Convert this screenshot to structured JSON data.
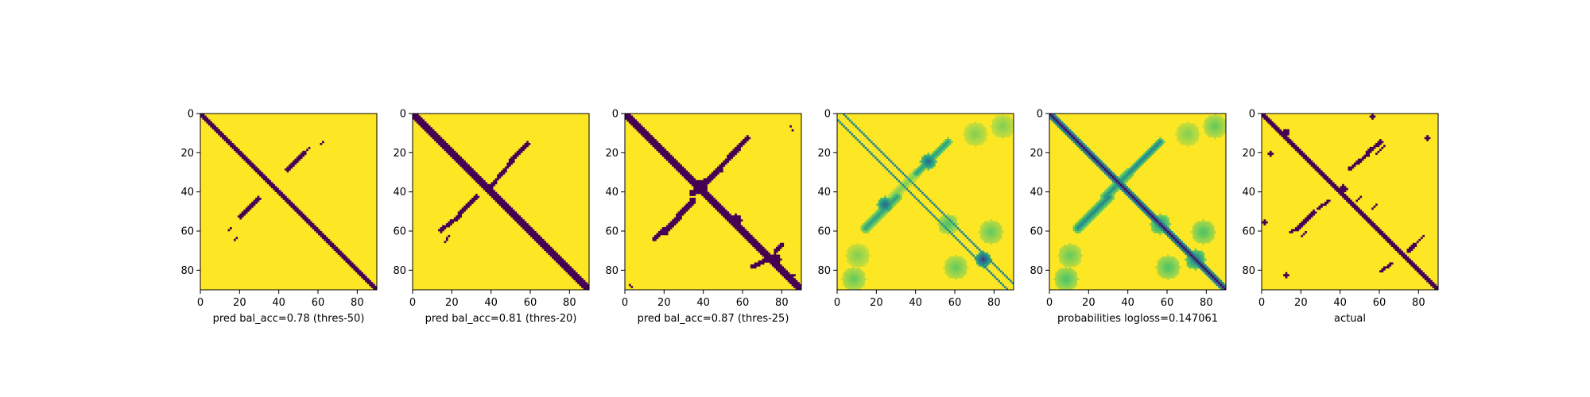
{
  "colors": {
    "background": "#fde725",
    "low": "#440154",
    "mid_dark": "#31688e",
    "mid": "#21918c",
    "mid_light": "#5ec962",
    "light": "#b5de2b",
    "frame": "#000000"
  },
  "chart_data": [
    {
      "type": "heatmap",
      "colormap": "viridis",
      "binary": true,
      "xlabel": "pred bal_acc=0.78 (thres-50)",
      "xlim": [
        0,
        90
      ],
      "ylim": [
        90,
        0
      ],
      "xticks": [
        "0",
        "20",
        "40",
        "60",
        "80"
      ],
      "yticks": [
        "0",
        "20",
        "40",
        "60",
        "80"
      ],
      "features": [
        {
          "kind": "diagonal",
          "width": 2.8,
          "value": 0
        },
        {
          "kind": "segment",
          "from": [
            44,
            28
          ],
          "to": [
            52,
            20
          ],
          "width": 2.0,
          "value": 0
        },
        {
          "kind": "segment",
          "from": [
            53,
            19
          ],
          "to": [
            55,
            17
          ],
          "width": 1.0,
          "value": 0
        },
        {
          "kind": "segment",
          "from": [
            61,
            15
          ],
          "to": [
            62,
            14
          ],
          "width": 0.8,
          "value": 0
        },
        {
          "kind": "segment",
          "from": [
            20,
            52
          ],
          "to": [
            29,
            43
          ],
          "width": 2.0,
          "value": 0
        },
        {
          "kind": "segment",
          "from": [
            14,
            59
          ],
          "to": [
            15,
            58
          ],
          "width": 0.8,
          "value": 0
        },
        {
          "kind": "segment",
          "from": [
            17,
            64
          ],
          "to": [
            18,
            63
          ],
          "width": 0.8,
          "value": 0
        }
      ]
    },
    {
      "type": "heatmap",
      "colormap": "viridis",
      "binary": true,
      "xlabel": "pred bal_acc=0.81 (thres-20)",
      "xlim": [
        0,
        90
      ],
      "ylim": [
        90,
        0
      ],
      "xticks": [
        "0",
        "20",
        "40",
        "60",
        "80"
      ],
      "yticks": [
        "0",
        "20",
        "40",
        "60",
        "80"
      ],
      "features": [
        {
          "kind": "diagonal",
          "width": 3.0,
          "value": 0
        },
        {
          "kind": "segment",
          "from": [
            40,
            36
          ],
          "to": [
            50,
            24
          ],
          "width": 2.0,
          "value": 0
        },
        {
          "kind": "segment",
          "from": [
            50,
            23
          ],
          "to": [
            58,
            15
          ],
          "width": 2.0,
          "value": 0
        },
        {
          "kind": "segment",
          "from": [
            24,
            50
          ],
          "to": [
            32,
            42
          ],
          "width": 2.2,
          "value": 0
        },
        {
          "kind": "segment",
          "from": [
            14,
            59
          ],
          "to": [
            23,
            52
          ],
          "width": 2.0,
          "value": 0
        },
        {
          "kind": "segment",
          "from": [
            16,
            65
          ],
          "to": [
            18,
            62
          ],
          "width": 0.9,
          "value": 0
        }
      ]
    },
    {
      "type": "heatmap",
      "colormap": "viridis",
      "binary": true,
      "xlabel": "pred bal_acc=0.87 (thres-25)",
      "xlim": [
        0,
        90
      ],
      "ylim": [
        90,
        0
      ],
      "xticks": [
        "0",
        "20",
        "40",
        "60",
        "80"
      ],
      "yticks": [
        "0",
        "20",
        "40",
        "60",
        "80"
      ],
      "features": [
        {
          "kind": "diagonal",
          "width": 3.6,
          "value": 0
        },
        {
          "kind": "segment",
          "from": [
            34,
            40
          ],
          "to": [
            48,
            28
          ],
          "width": 3.0,
          "value": 0
        },
        {
          "kind": "segment",
          "from": [
            48,
            27
          ],
          "to": [
            62,
            12
          ],
          "width": 2.4,
          "value": 0
        },
        {
          "kind": "segment",
          "from": [
            20,
            60
          ],
          "to": [
            34,
            44
          ],
          "width": 3.0,
          "value": 0
        },
        {
          "kind": "segment",
          "from": [
            14,
            64
          ],
          "to": [
            20,
            58
          ],
          "width": 1.5,
          "value": 0
        },
        {
          "kind": "blob",
          "center": [
            38,
            37
          ],
          "r": 3.5,
          "value": 0
        },
        {
          "kind": "blob",
          "center": [
            56,
            54
          ],
          "r": 3.0,
          "value": 0
        },
        {
          "kind": "blob",
          "center": [
            76,
            74
          ],
          "r": 3.0,
          "value": 0
        },
        {
          "kind": "segment",
          "from": [
            64,
            78
          ],
          "to": [
            72,
            74
          ],
          "width": 1.8,
          "value": 0
        },
        {
          "kind": "segment",
          "from": [
            76,
            70
          ],
          "to": [
            80,
            66
          ],
          "width": 1.5,
          "value": 0
        },
        {
          "kind": "segment",
          "from": [
            82,
            84
          ],
          "to": [
            86,
            82
          ],
          "width": 1.2,
          "value": 0
        },
        {
          "kind": "segment",
          "from": [
            84,
            6
          ],
          "to": [
            85,
            8
          ],
          "width": 0.8,
          "value": 0
        },
        {
          "kind": "segment",
          "from": [
            2,
            87
          ],
          "to": [
            3,
            88
          ],
          "width": 0.8,
          "value": 0
        }
      ]
    },
    {
      "type": "heatmap",
      "colormap": "viridis",
      "binary": false,
      "xlabel": "",
      "xlim": [
        0,
        90
      ],
      "ylim": [
        90,
        0
      ],
      "xticks": [
        "0",
        "20",
        "40",
        "60",
        "80"
      ],
      "yticks": [
        "0",
        "20",
        "40",
        "60",
        "80"
      ],
      "features": [
        {
          "kind": "offdiag",
          "offset": 3,
          "width": 0.8,
          "value": 0.45
        },
        {
          "kind": "offdiag",
          "offset": -3,
          "width": 0.8,
          "value": 0.45
        },
        {
          "kind": "segment",
          "from": [
            28,
            42
          ],
          "to": [
            40,
            30
          ],
          "width": 4.5,
          "value": 0.8
        },
        {
          "kind": "segment",
          "from": [
            40,
            30
          ],
          "to": [
            56,
            14
          ],
          "width": 4.0,
          "value": 0.55
        },
        {
          "kind": "segment",
          "from": [
            14,
            58
          ],
          "to": [
            30,
            42
          ],
          "width": 4.5,
          "value": 0.55
        },
        {
          "kind": "blob",
          "center": [
            24,
            46
          ],
          "r": 4.0,
          "value": 0.3
        },
        {
          "kind": "blob",
          "center": [
            46,
            24
          ],
          "r": 4.0,
          "value": 0.3
        },
        {
          "kind": "blob",
          "center": [
            74,
            74
          ],
          "r": 4.0,
          "value": 0.15
        },
        {
          "kind": "blob",
          "center": [
            56,
            56
          ],
          "r": 5.0,
          "value": 0.7
        },
        {
          "kind": "blob",
          "center": [
            70,
            10
          ],
          "r": 6.0,
          "value": 0.8
        },
        {
          "kind": "blob",
          "center": [
            84,
            6
          ],
          "r": 6.0,
          "value": 0.8
        },
        {
          "kind": "blob",
          "center": [
            10,
            72
          ],
          "r": 6.0,
          "value": 0.8
        },
        {
          "kind": "blob",
          "center": [
            8,
            84
          ],
          "r": 6.0,
          "value": 0.75
        },
        {
          "kind": "blob",
          "center": [
            60,
            78
          ],
          "r": 6.0,
          "value": 0.75
        },
        {
          "kind": "blob",
          "center": [
            78,
            60
          ],
          "r": 6.0,
          "value": 0.75
        }
      ]
    },
    {
      "type": "heatmap",
      "colormap": "viridis",
      "binary": false,
      "xlabel": "probabilities logloss=0.147061",
      "xlim": [
        0,
        90
      ],
      "ylim": [
        90,
        0
      ],
      "xticks": [
        "0",
        "20",
        "40",
        "60",
        "80"
      ],
      "yticks": [
        "0",
        "20",
        "40",
        "60",
        "80"
      ],
      "features": [
        {
          "kind": "diagonal",
          "width": 4.0,
          "value": 0.12
        },
        {
          "kind": "diagonal",
          "width": 2.0,
          "value": 0.0
        },
        {
          "kind": "segment",
          "from": [
            28,
            42
          ],
          "to": [
            40,
            30
          ],
          "width": 4.5,
          "value": 0.5
        },
        {
          "kind": "segment",
          "from": [
            40,
            30
          ],
          "to": [
            56,
            14
          ],
          "width": 4.0,
          "value": 0.45
        },
        {
          "kind": "segment",
          "from": [
            14,
            58
          ],
          "to": [
            30,
            42
          ],
          "width": 4.5,
          "value": 0.45
        },
        {
          "kind": "blob",
          "center": [
            56,
            56
          ],
          "r": 5.0,
          "value": 0.5
        },
        {
          "kind": "blob",
          "center": [
            74,
            74
          ],
          "r": 5.0,
          "value": 0.4
        },
        {
          "kind": "blob",
          "center": [
            70,
            10
          ],
          "r": 6.0,
          "value": 0.8
        },
        {
          "kind": "blob",
          "center": [
            84,
            6
          ],
          "r": 6.0,
          "value": 0.75
        },
        {
          "kind": "blob",
          "center": [
            10,
            72
          ],
          "r": 6.0,
          "value": 0.75
        },
        {
          "kind": "blob",
          "center": [
            8,
            84
          ],
          "r": 6.0,
          "value": 0.7
        },
        {
          "kind": "blob",
          "center": [
            60,
            78
          ],
          "r": 6.0,
          "value": 0.7
        },
        {
          "kind": "blob",
          "center": [
            78,
            60
          ],
          "r": 6.0,
          "value": 0.7
        }
      ]
    },
    {
      "type": "heatmap",
      "colormap": "viridis",
      "binary": true,
      "xlabel": "actual",
      "xlim": [
        0,
        90
      ],
      "ylim": [
        90,
        0
      ],
      "xticks": [
        "0",
        "20",
        "40",
        "60",
        "80"
      ],
      "yticks": [
        "0",
        "20",
        "40",
        "60",
        "80"
      ],
      "features": [
        {
          "kind": "diagonal",
          "width": 2.6,
          "value": 0
        },
        {
          "kind": "segment",
          "from": [
            44,
            28
          ],
          "to": [
            54,
            20
          ],
          "width": 1.6,
          "value": 0
        },
        {
          "kind": "segment",
          "from": [
            54,
            19
          ],
          "to": [
            60,
            14
          ],
          "width": 2.0,
          "value": 0
        },
        {
          "kind": "segment",
          "from": [
            58,
            20
          ],
          "to": [
            62,
            16
          ],
          "width": 1.4,
          "value": 0
        },
        {
          "kind": "segment",
          "from": [
            28,
            48
          ],
          "to": [
            34,
            44
          ],
          "width": 1.6,
          "value": 0
        },
        {
          "kind": "segment",
          "from": [
            18,
            58
          ],
          "to": [
            26,
            50
          ],
          "width": 2.0,
          "value": 0
        },
        {
          "kind": "segment",
          "from": [
            14,
            60
          ],
          "to": [
            18,
            58
          ],
          "width": 1.4,
          "value": 0
        },
        {
          "kind": "segment",
          "from": [
            20,
            62
          ],
          "to": [
            22,
            60
          ],
          "width": 1.0,
          "value": 0
        },
        {
          "kind": "blob",
          "center": [
            41,
            38
          ],
          "r": 2.2,
          "value": 0
        },
        {
          "kind": "segment",
          "from": [
            74,
            70
          ],
          "to": [
            78,
            66
          ],
          "width": 1.6,
          "value": 0
        },
        {
          "kind": "segment",
          "from": [
            78,
            66
          ],
          "to": [
            82,
            62
          ],
          "width": 1.2,
          "value": 0
        },
        {
          "kind": "segment",
          "from": [
            60,
            80
          ],
          "to": [
            66,
            76
          ],
          "width": 1.4,
          "value": 0
        },
        {
          "kind": "segment",
          "from": [
            48,
            44
          ],
          "to": [
            50,
            42
          ],
          "width": 1.4,
          "value": 0
        },
        {
          "kind": "segment",
          "from": [
            56,
            48
          ],
          "to": [
            58,
            46
          ],
          "width": 1.2,
          "value": 0
        },
        {
          "kind": "blob",
          "center": [
            84,
            12
          ],
          "r": 1.4,
          "value": 0
        },
        {
          "kind": "blob",
          "center": [
            56,
            1
          ],
          "r": 1.2,
          "value": 0
        },
        {
          "kind": "blob",
          "center": [
            12,
            9
          ],
          "r": 1.6,
          "value": 0
        },
        {
          "kind": "blob",
          "center": [
            4,
            20
          ],
          "r": 1.2,
          "value": 0
        },
        {
          "kind": "blob",
          "center": [
            1,
            55
          ],
          "r": 1.2,
          "value": 0
        },
        {
          "kind": "blob",
          "center": [
            12,
            82
          ],
          "r": 1.4,
          "value": 0
        }
      ]
    }
  ]
}
